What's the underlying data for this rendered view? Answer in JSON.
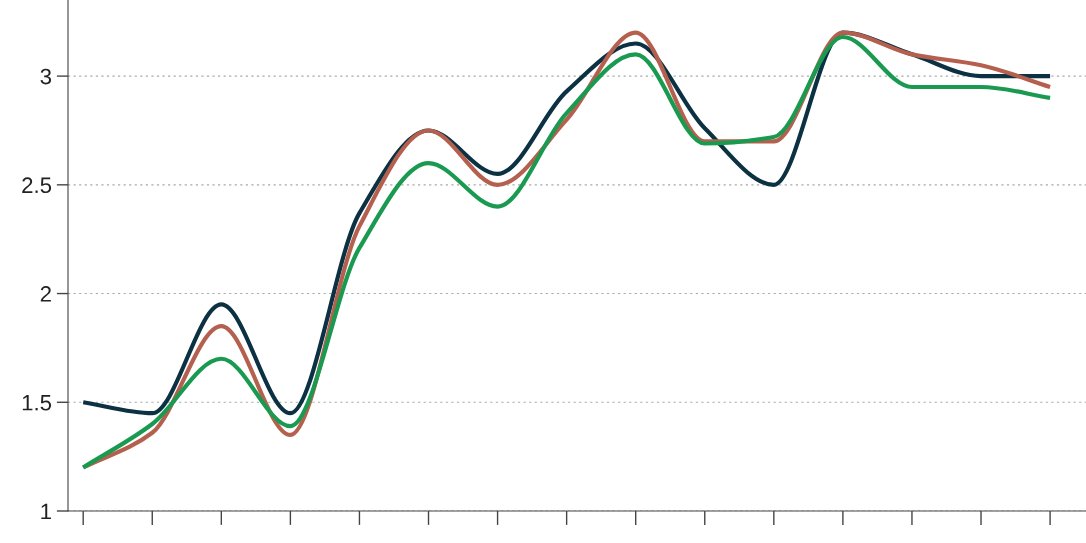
{
  "chart_data": {
    "type": "line",
    "categories": [
      null,
      null,
      null,
      null,
      null,
      null,
      null,
      null,
      null,
      null,
      null,
      null,
      null,
      null,
      null
    ],
    "series": [
      {
        "color": "#0b3142",
        "values": [
          1.5,
          1.45,
          1.95,
          1.45,
          2.37,
          2.75,
          2.55,
          2.93,
          3.15,
          2.76,
          2.5,
          3.2,
          3.1,
          3.0,
          3.0
        ]
      },
      {
        "color": "#b5604f",
        "values": [
          1.2,
          1.36,
          1.85,
          1.35,
          2.31,
          2.75,
          2.5,
          2.8,
          3.2,
          2.7,
          2.7,
          3.2,
          3.1,
          3.05,
          2.95
        ]
      },
      {
        "color": "#1a9a50",
        "values": [
          1.2,
          1.4,
          1.7,
          1.39,
          2.21,
          2.6,
          2.4,
          2.83,
          3.1,
          2.69,
          2.72,
          3.18,
          2.95,
          2.95,
          2.9
        ]
      }
    ],
    "ylim": [
      1,
      3.35
    ],
    "yticks": [
      1,
      1.5,
      2,
      2.5,
      3
    ],
    "grid": "y",
    "line_style": "solid",
    "marker": "none"
  }
}
